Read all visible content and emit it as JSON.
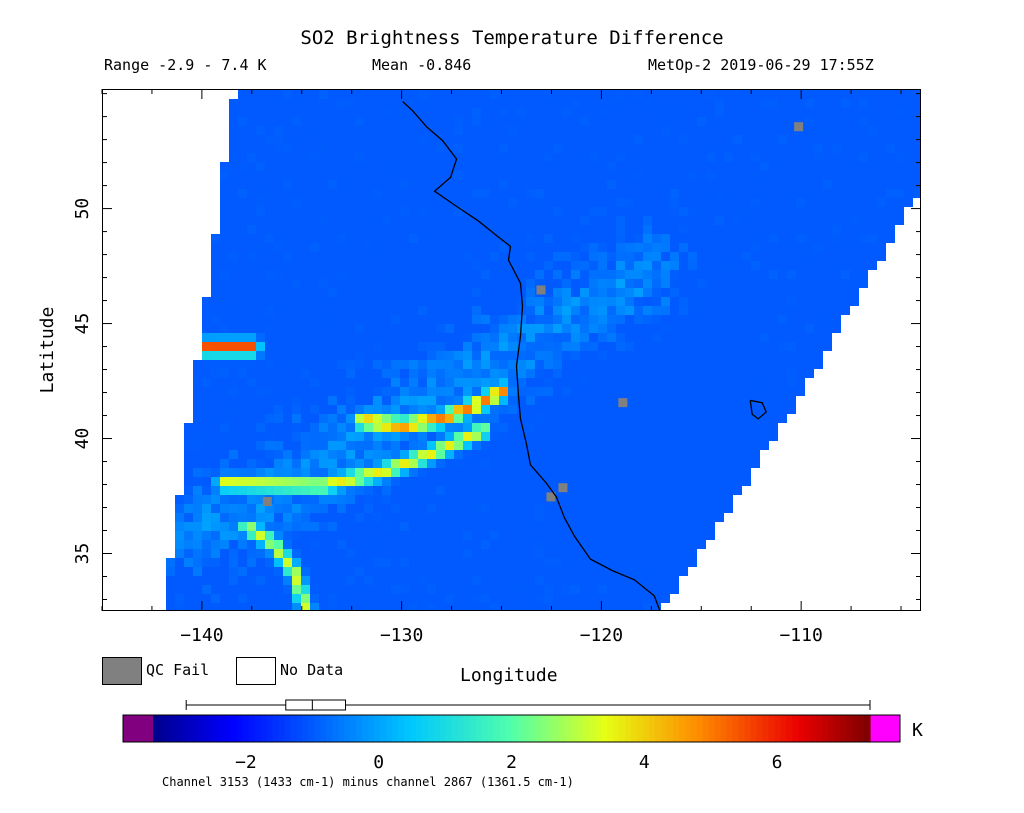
{
  "chart_data": {
    "type": "heatmap",
    "title": "SO2 Brightness Temperature Difference",
    "subtitle_left": "Range -2.9 - 7.4 K",
    "subtitle_mid": "Mean -0.846",
    "subtitle_right": "MetOp-2 2019-06-29 17:55Z",
    "xlabel": "Longitude",
    "ylabel": "Latitude",
    "xlim": [
      -145,
      -104
    ],
    "ylim": [
      32.5,
      55.2
    ],
    "xticks": [
      -140,
      -130,
      -120,
      -110
    ],
    "yticks": [
      35,
      40,
      45,
      50
    ],
    "xtick_labels": [
      "−140",
      "−130",
      "−120",
      "−110"
    ],
    "ytick_labels": [
      "35",
      "40",
      "45",
      "50"
    ],
    "range": [
      -2.9,
      7.4
    ],
    "mean": -0.846,
    "colorbar": {
      "min": -3.4,
      "max": 7.4,
      "ticks": [
        -2,
        0,
        2,
        4,
        6
      ],
      "tick_labels": [
        "−2",
        "0",
        "2",
        "4",
        "6"
      ],
      "unit": "K",
      "boxplot": {
        "min": -2.9,
        "q1": -1.4,
        "median": -1.0,
        "q3": -0.5,
        "max": 7.4
      }
    },
    "legend": [
      {
        "label": "QC Fail",
        "color": "#808080"
      },
      {
        "label": "No Data",
        "color": "#ffffff"
      }
    ],
    "features": {
      "plumes": [
        {
          "points": [
            [
              -125.0,
              42.1
            ],
            [
              -126.3,
              41.5
            ],
            [
              -128.0,
              40.9
            ],
            [
              -130.0,
              40.6
            ],
            [
              -132.0,
              40.8
            ]
          ],
          "value": 5.0
        },
        {
          "points": [
            [
              -126.0,
              40.4
            ],
            [
              -128.5,
              39.4
            ],
            [
              -131.0,
              38.6
            ],
            [
              -134.0,
              38.0
            ],
            [
              -139.0,
              38.1
            ]
          ],
          "value": 3.6
        },
        {
          "points": [
            [
              -137.5,
              44.0
            ],
            [
              -139.8,
              44.0
            ]
          ],
          "value": 5.6
        },
        {
          "points": [
            [
              -134.8,
              32.5
            ],
            [
              -135.4,
              34.2
            ],
            [
              -136.5,
              35.5
            ],
            [
              -137.8,
              36.2
            ]
          ],
          "value": 3.2
        }
      ]
    },
    "swath_edges": {
      "left": [
        [
          -142.0,
          32.5
        ],
        [
          -138.4,
          55.2
        ]
      ],
      "right": [
        [
          -117.0,
          32.5
        ],
        [
          -114.0,
          36.5
        ],
        [
          -110.0,
          42.0
        ],
        [
          -106.0,
          48.0
        ],
        [
          -104.0,
          51.0
        ]
      ]
    }
  },
  "footer": "Channel 3153 (1433 cm-1) minus channel 2867 (1361.5 cm-1)"
}
